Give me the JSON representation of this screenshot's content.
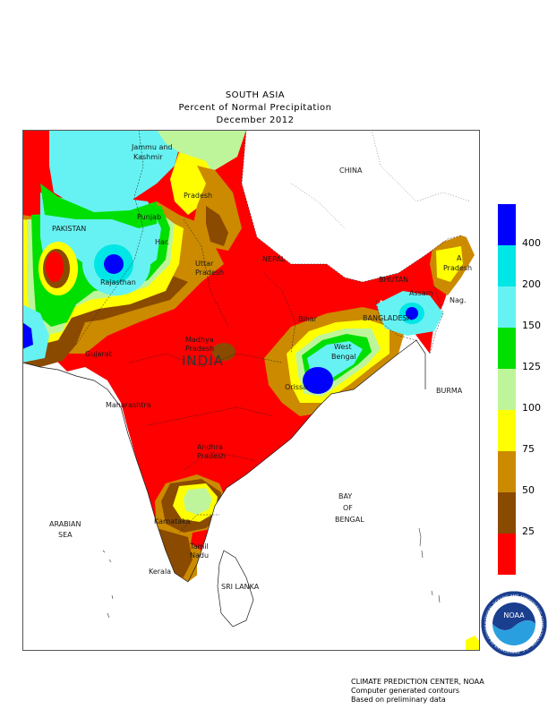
{
  "title": {
    "line1": "SOUTH ASIA",
    "line2": "Percent of Normal Precipitation",
    "line3": "December 2012"
  },
  "map_labels": {
    "jammu": "Jammu and",
    "kashmir": "Kashmir",
    "pradesh_hp": "Pradesh",
    "punjab": "Punjab",
    "pakistan": "PAKISTAN",
    "har": "Har.",
    "rajasthan": "Rajasthan",
    "uttar": "Uttar",
    "pradesh_up": "Pradesh",
    "nepal": "NEPAL",
    "china": "CHINA",
    "bhutan": "BHUTAN",
    "arunachal": "A",
    "pradesh_ap": "Pradesh",
    "assam": "Assam",
    "nag": "Nag.",
    "bangladesh": "BANGLADESH",
    "bihar": "Bihar",
    "west": "West",
    "bengal": "Bengal",
    "madhya": "Madhya",
    "pradesh_mp": "Pradesh",
    "india": "INDIA",
    "gujarat": "Gujarat",
    "orissa": "Orissa",
    "burma": "BURMA",
    "maharashtra": "Maharashtra",
    "andhra": "Andhra",
    "pradesh_andhra": "Pradesh",
    "bay": "BAY",
    "of": "OF",
    "bengal_bay": "BENGAL",
    "arabian": "ARABIAN",
    "sea": "SEA",
    "karnataka": "Karnataka",
    "tamil": "Tamil",
    "nadu": "Nadu",
    "kerala": "Kerala",
    "sri_lanka": "SRI LANKA"
  },
  "legend": {
    "labels": [
      "400",
      "200",
      "150",
      "125",
      "100",
      "75",
      "50",
      "25"
    ],
    "colors": {
      "c400": "#0000ff",
      "c200": "#00e5e5",
      "c150": "#66f2f2",
      "c125": "#00e000",
      "c100": "#bff59a",
      "c75": "#ffff00",
      "c50": "#cc8a00",
      "c25": "#8a4a00",
      "c0": "#ff0000"
    }
  },
  "credits": {
    "line1": "CLIMATE PREDICTION CENTER, NOAA",
    "line2": "Computer generated contours",
    "line3": "Based on preliminary data"
  },
  "logo": {
    "text": "NOAA",
    "ring_text": "NATIONAL OCEANIC AND ATMOSPHERIC ADMINISTRATION · U.S. DEPARTMENT OF COMMERCE"
  }
}
